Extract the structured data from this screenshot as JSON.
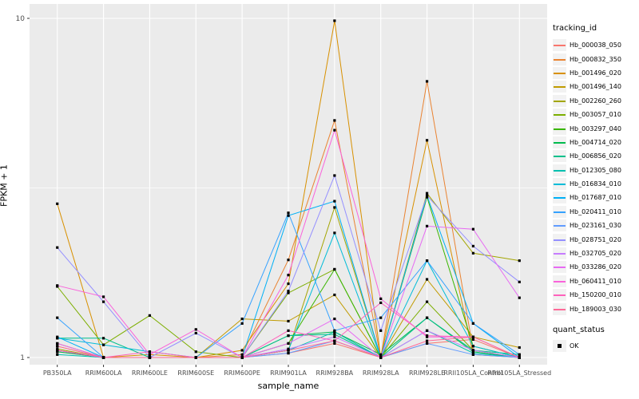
{
  "chart_data": {
    "type": "line",
    "title": "",
    "xlabel": "sample_name",
    "ylabel": "FPKM + 1",
    "y_scale": "log10",
    "ylim": [
      0.97,
      10.6
    ],
    "y_ticks": [
      1,
      10
    ],
    "y_tick_labels": [
      "1",
      "10"
    ],
    "y_minor_breaks": [
      3.162
    ],
    "grid": true,
    "panel_bg": "#EBEBEB",
    "grid_color": "#FFFFFF",
    "tick_label_color": "#4D4D4D",
    "point_color": "#000000",
    "legend_position": "right",
    "categories": [
      "PB350LA",
      "RRIM600LA",
      "RRIM600LE",
      "RRIM600SE",
      "RRIM600PE",
      "RRIM901LA",
      "RRIM928BA",
      "RRIM928LA",
      "RRIM928LE",
      "RRII105LA_Control",
      "RRII105LA_Stressed"
    ],
    "series": [
      {
        "name": "Hb_000038_050",
        "color": "#F8766D",
        "values": [
          1.04,
          1.0,
          1.0,
          1.0,
          1.0,
          1.03,
          1.1,
          1.0,
          1.1,
          1.13,
          1.0
        ]
      },
      {
        "name": "Hb_000832_350",
        "color": "#EA8331",
        "values": [
          1.08,
          1.0,
          1.0,
          1.0,
          1.02,
          1.94,
          5.0,
          1.0,
          6.52,
          1.05,
          1.0
        ]
      },
      {
        "name": "Hb_001496_020",
        "color": "#D89000",
        "values": [
          2.84,
          1.0,
          1.02,
          1.0,
          1.05,
          1.65,
          9.84,
          1.0,
          4.37,
          1.02,
          1.0
        ]
      },
      {
        "name": "Hb_001496_140",
        "color": "#C09B00",
        "values": [
          1.1,
          1.0,
          1.0,
          1.0,
          1.3,
          1.28,
          1.53,
          1.0,
          1.7,
          1.15,
          1.07
        ]
      },
      {
        "name": "Hb_002260_260",
        "color": "#A3A500",
        "values": [
          1.06,
          1.0,
          1.0,
          1.0,
          1.0,
          1.05,
          2.77,
          1.0,
          3.05,
          2.03,
          1.93
        ]
      },
      {
        "name": "Hb_003057_010",
        "color": "#7CAE00",
        "values": [
          1.62,
          1.09,
          1.33,
          1.04,
          1.0,
          1.55,
          1.82,
          1.0,
          1.46,
          1.05,
          1.0
        ]
      },
      {
        "name": "Hb_003297_040",
        "color": "#39B600",
        "values": [
          1.05,
          1.0,
          1.0,
          1.0,
          1.0,
          1.1,
          1.82,
          1.0,
          2.97,
          1.08,
          1.0
        ]
      },
      {
        "name": "Hb_004714_020",
        "color": "#00BB4E",
        "values": [
          1.04,
          1.0,
          1.0,
          1.0,
          1.0,
          1.16,
          1.19,
          1.02,
          1.31,
          1.04,
          1.0
        ]
      },
      {
        "name": "Hb_006856_020",
        "color": "#00C08B",
        "values": [
          1.14,
          1.14,
          1.0,
          1.0,
          1.0,
          1.16,
          1.17,
          1.0,
          1.31,
          1.05,
          1.02
        ]
      },
      {
        "name": "Hb_012305_080",
        "color": "#00C0AF",
        "values": [
          1.02,
          1.0,
          1.0,
          1.0,
          1.0,
          1.05,
          1.19,
          1.0,
          1.2,
          1.03,
          1.0
        ]
      },
      {
        "name": "Hb_016834_010",
        "color": "#00BCD8",
        "values": [
          1.14,
          1.09,
          1.04,
          1.0,
          1.0,
          1.05,
          2.33,
          1.0,
          1.93,
          1.08,
          1.0
        ]
      },
      {
        "name": "Hb_017687_010",
        "color": "#00B0F6",
        "values": [
          1.15,
          1.0,
          1.0,
          1.0,
          1.0,
          2.62,
          2.89,
          1.0,
          3.0,
          1.26,
          1.0
        ]
      },
      {
        "name": "Hb_020411_010",
        "color": "#35A2FF",
        "values": [
          1.31,
          1.0,
          1.0,
          1.0,
          1.26,
          2.67,
          1.2,
          1.31,
          1.93,
          1.26,
          1.02
        ]
      },
      {
        "name": "Hb_023161_030",
        "color": "#619CFF",
        "values": [
          1.05,
          1.0,
          1.0,
          1.0,
          1.0,
          1.03,
          1.12,
          1.0,
          1.1,
          1.02,
          1.0
        ]
      },
      {
        "name": "Hb_028751_020",
        "color": "#9590FF",
        "values": [
          2.11,
          1.46,
          1.0,
          1.18,
          1.0,
          1.57,
          3.44,
          1.2,
          3.0,
          2.13,
          1.67
        ]
      },
      {
        "name": "Hb_032705_020",
        "color": "#C77CFF",
        "values": [
          1.05,
          1.0,
          1.0,
          1.0,
          1.0,
          1.06,
          1.15,
          1.0,
          1.2,
          1.05,
          1.0
        ]
      },
      {
        "name": "Hb_033286_020",
        "color": "#E76BF3",
        "values": [
          1.1,
          1.0,
          1.0,
          1.0,
          1.0,
          1.1,
          1.3,
          1.0,
          2.44,
          2.39,
          1.5
        ]
      },
      {
        "name": "Hb_060411_010",
        "color": "#FA62DB",
        "values": [
          1.63,
          1.51,
          1.02,
          1.21,
          1.0,
          1.75,
          4.68,
          1.49,
          1.15,
          1.15,
          1.0
        ]
      },
      {
        "name": "Hb_150200_010",
        "color": "#FF62BC",
        "values": [
          1.05,
          1.0,
          1.04,
          1.0,
          1.0,
          1.2,
          1.12,
          1.45,
          1.16,
          1.15,
          1.0
        ]
      },
      {
        "name": "Hb_189003_030",
        "color": "#FF6A98",
        "values": [
          1.08,
          1.0,
          1.0,
          1.0,
          1.0,
          1.05,
          1.12,
          1.0,
          1.12,
          1.15,
          1.0
        ]
      }
    ],
    "legend": {
      "color_title": "tracking_id",
      "shape_title": "quant_status",
      "shape_items": [
        "OK"
      ]
    }
  }
}
